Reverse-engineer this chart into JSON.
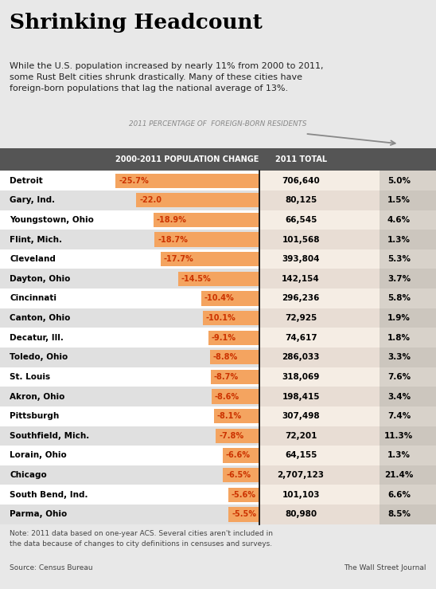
{
  "title": "Shrinking Headcount",
  "subtitle": "While the U.S. population increased by nearly 11% from 2000 to 2011,\nsome Rust Belt cities shrunk drastically. Many of these cities have\nforeign-born populations that lag the national average of 13%.",
  "header_label": "2011 PERCENTAGE OF  FOREIGN-BORN RESIDENTS",
  "col_header1": "2000-2011 POPULATION CHANGE",
  "col_header2": "2011 TOTAL",
  "note": "Note: 2011 data based on one-year ACS. Several cities aren't included in\nthe data because of changes to city definitions in censuses and surveys.",
  "source": "Source: Census Bureau",
  "wsj": "The Wall Street Journal",
  "cities": [
    "Detroit",
    "Gary, Ind.",
    "Youngstown, Ohio",
    "Flint, Mich.",
    "Cleveland",
    "Dayton, Ohio",
    "Cincinnati",
    "Canton, Ohio",
    "Decatur, Ill.",
    "Toledo, Ohio",
    "St. Louis",
    "Akron, Ohio",
    "Pittsburgh",
    "Southfield, Mich.",
    "Lorain, Ohio",
    "Chicago",
    "South Bend, Ind.",
    "Parma, Ohio"
  ],
  "pop_change": [
    -25.7,
    -22.0,
    -18.9,
    -18.7,
    -17.7,
    -14.5,
    -10.4,
    -10.1,
    -9.1,
    -8.8,
    -8.7,
    -8.6,
    -8.1,
    -7.8,
    -6.6,
    -6.5,
    -5.6,
    -5.5
  ],
  "pop_total": [
    "706,640",
    "80,125",
    "66,545",
    "101,568",
    "393,804",
    "142,154",
    "296,236",
    "72,925",
    "74,617",
    "286,033",
    "318,069",
    "198,415",
    "307,498",
    "72,201",
    "64,155",
    "2,707,123",
    "101,103",
    "80,980"
  ],
  "foreign_pct": [
    "5.0%",
    "1.5%",
    "4.6%",
    "1.3%",
    "5.3%",
    "3.7%",
    "5.8%",
    "1.9%",
    "1.8%",
    "3.3%",
    "7.6%",
    "3.4%",
    "7.4%",
    "11.3%",
    "1.3%",
    "21.4%",
    "6.6%",
    "8.5%"
  ],
  "bg_outer": "#e8e8e8",
  "bar_color": "#f4a460",
  "header_bg": "#555555",
  "row_bg_even": "#ffffff",
  "row_bg_odd": "#e0e0e0",
  "row_right1_even": "#f5ede4",
  "row_right1_odd": "#e8ddd4",
  "row_right2_even": "#d8d2ca",
  "row_right2_odd": "#ccc6be",
  "change_color": "#cc3300",
  "note_color": "#444444",
  "header_label_color": "#888888",
  "max_change": 25.7
}
